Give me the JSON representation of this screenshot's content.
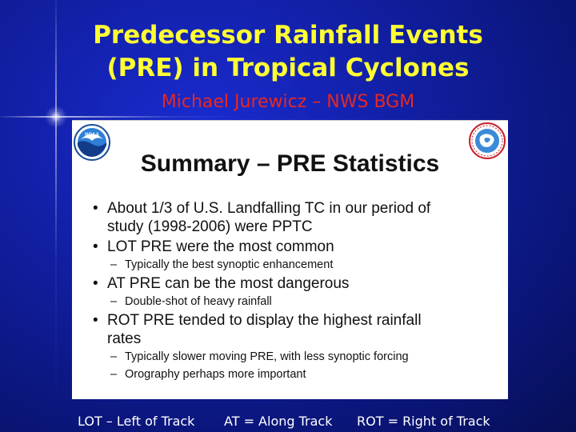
{
  "title": {
    "line1": "Predecessor Rainfall Events",
    "line2": "(PRE) in Tropical Cyclones"
  },
  "subtitle": "Michael Jurewicz – NWS BGM",
  "slide": {
    "heading": "Summary – PRE Statistics",
    "logos": {
      "left": "NOAA",
      "left_icon": "noaa-logo-icon",
      "right_icon": "national-weather-service-logo-icon"
    },
    "bullet_char": "•",
    "dash_char": "–",
    "bullets": [
      {
        "line1": "About 1/3 of U.S. Landfalling TC in our period of",
        "line2": "study (1998-2006) were PPTC",
        "subs": []
      },
      {
        "line1": "LOT PRE were the most common",
        "line2": "",
        "subs": [
          "Typically the best synoptic enhancement"
        ]
      },
      {
        "line1": "AT PRE can be the most dangerous",
        "line2": "",
        "subs": [
          "Double-shot of heavy rainfall"
        ]
      },
      {
        "line1": "ROT PRE tended to display the highest rainfall",
        "line2": "rates",
        "subs": [
          "Typically slower moving PRE, with less synoptic forcing",
          "Orography perhaps more important"
        ]
      }
    ]
  },
  "footer": {
    "lot": "LOT – Left of Track",
    "at": "AT = Along Track",
    "rot": "ROT = Right of Track"
  },
  "colors": {
    "background": "#1220a8",
    "title": "#ffff33",
    "subtitle": "#e8281f",
    "footer_text": "#ffffff"
  }
}
